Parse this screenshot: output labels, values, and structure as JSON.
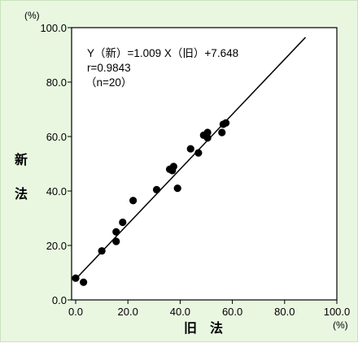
{
  "chart_data": {
    "type": "scatter",
    "x_unit": "(%)",
    "y_unit": "(%)",
    "xlabel": "旧　法",
    "ylabel_chars": [
      "新",
      "法"
    ],
    "xlim": [
      0,
      100
    ],
    "ylim": [
      0,
      100
    ],
    "x_ticks": [
      "0.0",
      "20.0",
      "40.0",
      "60.0",
      "80.0",
      "100.0"
    ],
    "y_ticks": [
      "0.0",
      "20.0",
      "40.0",
      "60.0",
      "80.0",
      "100.0"
    ],
    "grid": false,
    "annotation": [
      "Y（新）=1.009 X（旧）+7.648",
      "r=0.9843",
      "（n=20）"
    ],
    "regression": {
      "slope": 1.009,
      "intercept": 7.648,
      "x_range": [
        0,
        88
      ]
    },
    "points": [
      {
        "x": 0,
        "y": 8
      },
      {
        "x": 3,
        "y": 6.5
      },
      {
        "x": 10,
        "y": 18
      },
      {
        "x": 15.5,
        "y": 21.5
      },
      {
        "x": 15.5,
        "y": 25
      },
      {
        "x": 18,
        "y": 28.5
      },
      {
        "x": 22,
        "y": 36.5
      },
      {
        "x": 31,
        "y": 40.5
      },
      {
        "x": 36,
        "y": 48
      },
      {
        "x": 37,
        "y": 47.5
      },
      {
        "x": 37.5,
        "y": 49
      },
      {
        "x": 39,
        "y": 41
      },
      {
        "x": 44,
        "y": 55.5
      },
      {
        "x": 47,
        "y": 54
      },
      {
        "x": 49,
        "y": 60.5
      },
      {
        "x": 50.5,
        "y": 61.5
      },
      {
        "x": 50.5,
        "y": 59.5
      },
      {
        "x": 56,
        "y": 61.5
      },
      {
        "x": 56.5,
        "y": 64.5
      },
      {
        "x": 57.5,
        "y": 65
      }
    ]
  }
}
